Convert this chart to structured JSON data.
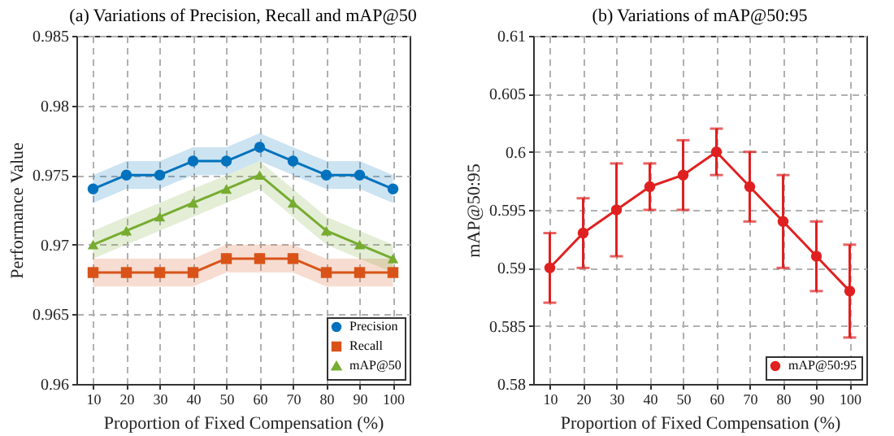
{
  "chart_data": [
    {
      "type": "line",
      "title": "(a) Variations of Precision, Recall and mAP@50",
      "xlabel": "Proportion of Fixed Compensation (%)",
      "ylabel": "Performance Value",
      "x": [
        10,
        20,
        30,
        40,
        50,
        60,
        70,
        80,
        90,
        100
      ],
      "xlim": [
        5,
        105
      ],
      "xticks": [
        10,
        20,
        30,
        40,
        50,
        60,
        70,
        80,
        90,
        100
      ],
      "ylim": [
        0.96,
        0.985
      ],
      "yticks": [
        0.96,
        0.965,
        0.97,
        0.975,
        0.98,
        0.985
      ],
      "grid": true,
      "legend": "bottom right",
      "series": [
        {
          "name": "Precision",
          "color": "#0072bd",
          "marker": "circle",
          "values": [
            0.974,
            0.975,
            0.975,
            0.976,
            0.976,
            0.977,
            0.976,
            0.975,
            0.975,
            0.974
          ],
          "lower": [
            0.973,
            0.974,
            0.974,
            0.975,
            0.975,
            0.976,
            0.975,
            0.974,
            0.974,
            0.973
          ],
          "upper": [
            0.975,
            0.976,
            0.976,
            0.977,
            0.977,
            0.978,
            0.977,
            0.976,
            0.976,
            0.975
          ]
        },
        {
          "name": "Recall",
          "color": "#d95319",
          "marker": "square",
          "values": [
            0.968,
            0.968,
            0.968,
            0.968,
            0.969,
            0.969,
            0.969,
            0.968,
            0.968,
            0.968
          ],
          "lower": [
            0.967,
            0.967,
            0.967,
            0.967,
            0.968,
            0.968,
            0.968,
            0.967,
            0.967,
            0.967
          ],
          "upper": [
            0.969,
            0.969,
            0.969,
            0.969,
            0.97,
            0.97,
            0.97,
            0.969,
            0.969,
            0.969
          ]
        },
        {
          "name": "mAP@50",
          "color": "#77ac30",
          "marker": "triangle",
          "values": [
            0.97,
            0.971,
            0.972,
            0.973,
            0.974,
            0.975,
            0.973,
            0.971,
            0.97,
            0.969
          ],
          "lower": [
            0.969,
            0.97,
            0.971,
            0.972,
            0.973,
            0.974,
            0.972,
            0.97,
            0.969,
            0.968
          ],
          "upper": [
            0.971,
            0.972,
            0.973,
            0.974,
            0.975,
            0.976,
            0.974,
            0.972,
            0.971,
            0.97
          ]
        }
      ]
    },
    {
      "type": "line",
      "title": "(b) Variations of mAP@50:95",
      "xlabel": "Proportion of Fixed Compensation (%)",
      "ylabel": "mAP@50:95",
      "x": [
        10,
        20,
        30,
        40,
        50,
        60,
        70,
        80,
        90,
        100
      ],
      "xlim": [
        5,
        105
      ],
      "xticks": [
        10,
        20,
        30,
        40,
        50,
        60,
        70,
        80,
        90,
        100
      ],
      "ylim": [
        0.58,
        0.61
      ],
      "yticks": [
        0.58,
        0.585,
        0.59,
        0.595,
        0.6,
        0.605,
        0.61
      ],
      "grid": true,
      "legend": "bottom right",
      "series": [
        {
          "name": "mAP@50:95",
          "color": "#e02020",
          "marker": "circle",
          "values": [
            0.59,
            0.593,
            0.595,
            0.597,
            0.598,
            0.6,
            0.597,
            0.594,
            0.591,
            0.588
          ],
          "errors": [
            [
              0.587,
              0.593
            ],
            [
              0.59,
              0.596
            ],
            [
              0.591,
              0.599
            ],
            [
              0.595,
              0.599
            ],
            [
              0.595,
              0.601
            ],
            [
              0.598,
              0.602
            ],
            [
              0.594,
              0.6
            ],
            [
              0.59,
              0.598
            ],
            [
              0.588,
              0.594
            ],
            [
              0.584,
              0.592
            ]
          ]
        }
      ]
    }
  ]
}
